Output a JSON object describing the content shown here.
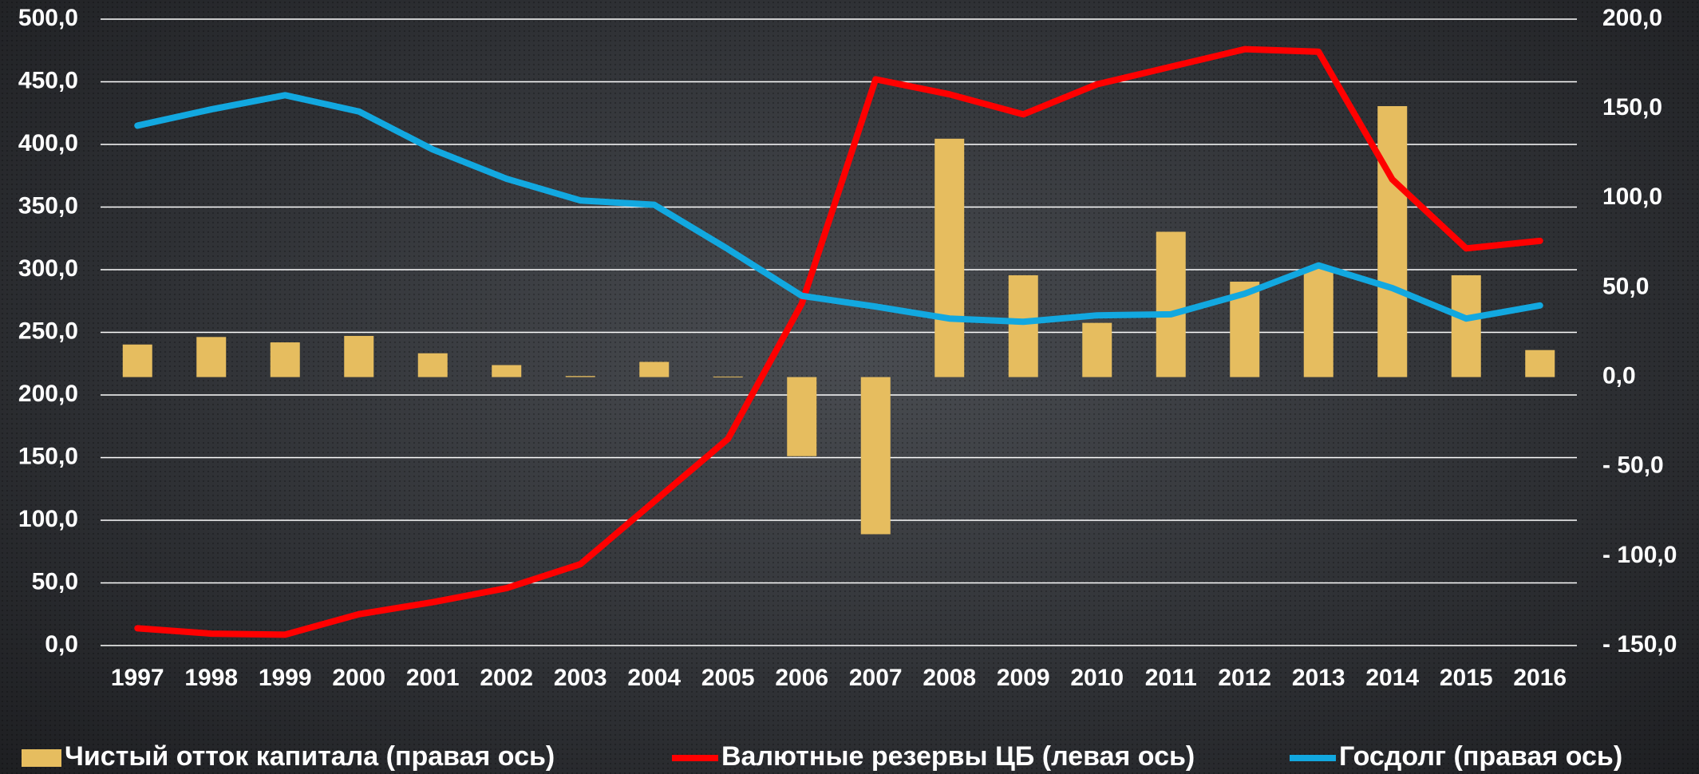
{
  "chart_data": {
    "type": "combo",
    "categories": [
      "1997",
      "1998",
      "1999",
      "2000",
      "2001",
      "2002",
      "2003",
      "2004",
      "2005",
      "2006",
      "2007",
      "2008",
      "2009",
      "2010",
      "2011",
      "2012",
      "2013",
      "2014",
      "2015",
      "2016"
    ],
    "ylim": [
      0,
      500
    ],
    "yticks": [
      {
        "value": 0,
        "label": "0,0"
      },
      {
        "value": 50,
        "label": "50,0"
      },
      {
        "value": 100,
        "label": "100,0"
      },
      {
        "value": 150,
        "label": "150,0"
      },
      {
        "value": 200,
        "label": "200,0"
      },
      {
        "value": 250,
        "label": "250,0"
      },
      {
        "value": 300,
        "label": "300,0"
      },
      {
        "value": 350,
        "label": "350,0"
      },
      {
        "value": 400,
        "label": "400,0"
      },
      {
        "value": 450,
        "label": "450,0"
      },
      {
        "value": 500,
        "label": "500,0"
      }
    ],
    "y2lim": [
      -150,
      200
    ],
    "y2ticks": [
      {
        "value": -150,
        "label": "- 150,0"
      },
      {
        "value": -100,
        "label": "- 100,0"
      },
      {
        "value": -50,
        "label": "- 50,0"
      },
      {
        "value": 0,
        "label": "0,0"
      },
      {
        "value": 50,
        "label": "50,0"
      },
      {
        "value": 100,
        "label": "100,0"
      },
      {
        "value": 150,
        "label": "150,0"
      },
      {
        "value": 200,
        "label": "200,0"
      }
    ],
    "grid": true,
    "series": [
      {
        "name": "Чистый отток капитала (правая ось)",
        "type": "bar",
        "axis": "y2",
        "color": "#e6bd5f",
        "values": [
          18.2,
          22.4,
          19.4,
          23,
          13.3,
          6.7,
          0.6,
          8.5,
          0.3,
          -44.2,
          -87.8,
          133.2,
          56.9,
          30.3,
          81.2,
          53.3,
          60.6,
          151.4,
          56.9,
          15.1
        ]
      },
      {
        "name": "Валютные резервы ЦБ (левая ось)",
        "type": "line",
        "axis": "y",
        "color": "#ff0000",
        "values": [
          13.8,
          9.5,
          8.7,
          25,
          34.6,
          45.8,
          64.9,
          115,
          165,
          273,
          452,
          440,
          424,
          448,
          462,
          476,
          474,
          372,
          317,
          323
        ]
      },
      {
        "name": "Госдолг (правая ось)",
        "type": "line",
        "axis": "y2",
        "color": "#12a8e0",
        "values": [
          140.5,
          149.6,
          157.5,
          148.4,
          127.2,
          110.8,
          98.7,
          96.3,
          71.5,
          45.4,
          39.4,
          32.7,
          30.9,
          34.5,
          35.1,
          46.6,
          62.4,
          49.7,
          32.7,
          40
        ]
      }
    ]
  }
}
